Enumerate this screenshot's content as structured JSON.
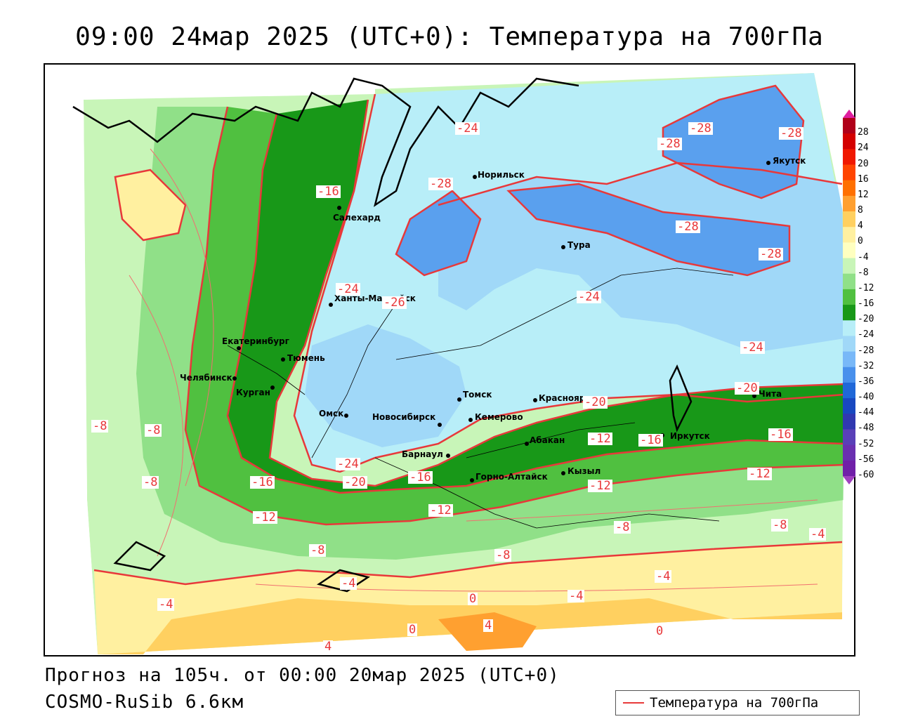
{
  "title": "09:00 24мар 2025 (UTC+0): Температура на 700гПа",
  "footer": {
    "forecast": "Прогноз на 105ч. от 00:00 20мар 2025 (UTC+0)",
    "model": "COSMO-RuSib 6.6км"
  },
  "legend": {
    "label": "Температура на 700гПа",
    "line_color": "#e8383a"
  },
  "colorbar": {
    "labels": [
      "28",
      "24",
      "20",
      "16",
      "12",
      "8",
      "4",
      "0",
      "-4",
      "-8",
      "-12",
      "-16",
      "-20",
      "-24",
      "-28",
      "-32",
      "-36",
      "-40",
      "-44",
      "-48",
      "-52",
      "-56",
      "-60"
    ],
    "colors": [
      "#b0001a",
      "#d40000",
      "#f01800",
      "#ff4400",
      "#ff7000",
      "#ffa030",
      "#ffd060",
      "#fff0a0",
      "#ffffc0",
      "#c8f5b8",
      "#90e088",
      "#50c040",
      "#189818",
      "#b8eef8",
      "#a0d8f8",
      "#78b8f8",
      "#4890ec",
      "#2068d8",
      "#1848c0",
      "#3038b0",
      "#5a40b8",
      "#6a30b0",
      "#7020a8"
    ],
    "top_arrow_color": "#e020a0",
    "bottom_arrow_color": "#a040c0"
  },
  "cities": [
    {
      "name": "Норильск"
    },
    {
      "name": "Якутск"
    },
    {
      "name": "Салехард"
    },
    {
      "name": "Тура"
    },
    {
      "name": "Ханты-Мансийск"
    },
    {
      "name": "Екатеринбург"
    },
    {
      "name": "Тюмень"
    },
    {
      "name": "Челябинск"
    },
    {
      "name": "Курган"
    },
    {
      "name": "Омск"
    },
    {
      "name": "Новосибирск"
    },
    {
      "name": "Томск"
    },
    {
      "name": "Красноярск"
    },
    {
      "name": "Кемерово"
    },
    {
      "name": "Абакан"
    },
    {
      "name": "Иркутск"
    },
    {
      "name": "Чита"
    },
    {
      "name": "Барнаул"
    },
    {
      "name": "Горно-Алтайск"
    },
    {
      "name": "Кызыл"
    }
  ],
  "contour_labels": [
    "-24",
    "-28",
    "-28",
    "-28",
    "-16",
    "-28",
    "-28",
    "-28",
    "-24",
    "-26",
    "-24",
    "-24",
    "-20",
    "-20",
    "-8",
    "-8",
    "-8",
    "-16",
    "-24",
    "-20",
    "-16",
    "-12",
    "-16",
    "-16",
    "-12",
    "-12",
    "-12",
    "-12",
    "-8",
    "-8",
    "-4",
    "-8",
    "-8",
    "-4",
    "-4",
    "-4",
    "-4",
    "0",
    "0",
    "4",
    "4",
    "0"
  ]
}
